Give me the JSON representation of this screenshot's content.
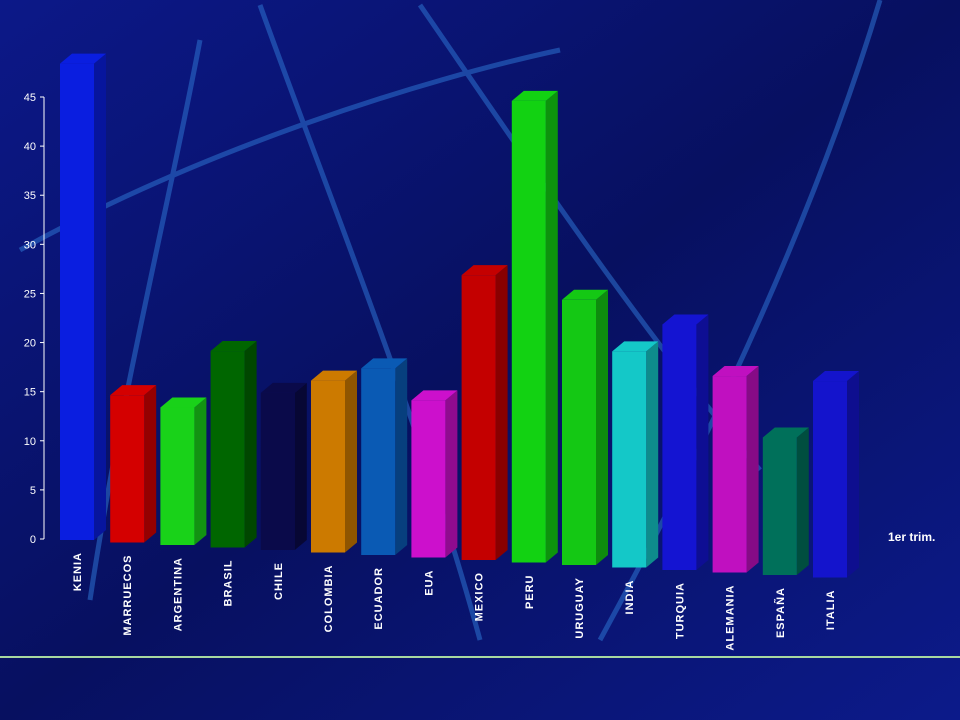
{
  "chart_data": {
    "type": "bar3d",
    "categories": [
      "KENIA",
      "MARRUECOS",
      "ARGENTINA",
      "BRASIL",
      "CHILE",
      "COLOMBIA",
      "ECUADOR",
      "EUA",
      "MEXICO",
      "PERU",
      "URUGUAY",
      "INDIA",
      "TURQUIA",
      "ALEMANIA",
      "ESPAÑA",
      "ITALIA"
    ],
    "series": [
      {
        "name": "1er trim.",
        "values": [
          48.5,
          15,
          14,
          20,
          16,
          17.5,
          19,
          16,
          29,
          47,
          27,
          22,
          25,
          20,
          14,
          20
        ],
        "colors": [
          "#0a1ee0",
          "#d40000",
          "#19d219",
          "#006600",
          "#0a0a4a",
          "#cc7a00",
          "#0a5ab4",
          "#cc10cc",
          "#c40000",
          "#12d212",
          "#14c814",
          "#14c8c8",
          "#1414d2",
          "#c010c0",
          "#00705a",
          "#1414cc"
        ]
      }
    ],
    "ylim": [
      0,
      45
    ],
    "yticks": [
      0,
      5,
      10,
      15,
      20,
      25,
      30,
      35,
      40,
      45
    ]
  }
}
